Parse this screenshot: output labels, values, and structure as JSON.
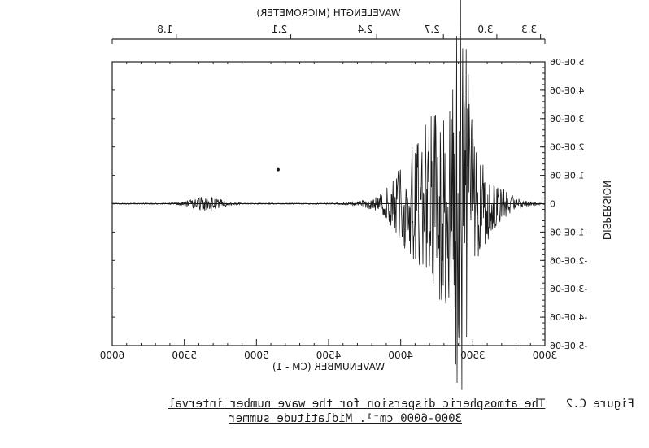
{
  "figure": {
    "label": "Figure C.2",
    "caption_line1": "The atmospheric dispersion for the wave number interval",
    "caption_line2": "3000-6000 cm⁻¹. Midlatitude summer"
  },
  "chart_data": {
    "type": "line",
    "title": "",
    "xlabel": "WAVENUMBER (CM - 1)",
    "ylabel": "DISPERSION",
    "top_axis_label": "WAVELENGTH (MICROMETER)",
    "xlim": [
      6000,
      3000
    ],
    "ylim": [
      -5e-06,
      5e-06
    ],
    "x_ticks": [
      "6000",
      "5500",
      "5000",
      "4500",
      "4000",
      "3500",
      "3000"
    ],
    "y_ticks": [
      "5.0E-06",
      "4.0E-06",
      "3.0E-06",
      "2.0E-06",
      "1.0E-06",
      "0",
      "-1.0E-06",
      "-2.0E-06",
      "-3.0E-06",
      "-4.0E-06",
      "-5.0E-06"
    ],
    "top_ticks": [
      {
        "label": "1.8",
        "wavelength_um": 1.8
      },
      {
        "label": "2.1",
        "wavelength_um": 2.1
      },
      {
        "label": "2.4",
        "wavelength_um": 2.4
      },
      {
        "label": "2.7",
        "wavelength_um": 2.7
      },
      {
        "label": "3.0",
        "wavelength_um": 3.0
      },
      {
        "label": "3.3",
        "wavelength_um": 3.3
      }
    ],
    "grid": false,
    "series": [
      {
        "values_description_free": true,
        "bursts": [
          {
            "center": 5350,
            "halfwidth": 180,
            "amplitude": 2.5e-07
          },
          {
            "center": 3700,
            "halfwidth": 420,
            "amplitude": 3.6e-06
          },
          {
            "center": 3580,
            "halfwidth": 80,
            "amplitude": 4.3e-06
          }
        ]
      }
    ],
    "annotations": [
      {
        "x": 4850,
        "y": 1.2e-06,
        "text": "•"
      }
    ]
  }
}
